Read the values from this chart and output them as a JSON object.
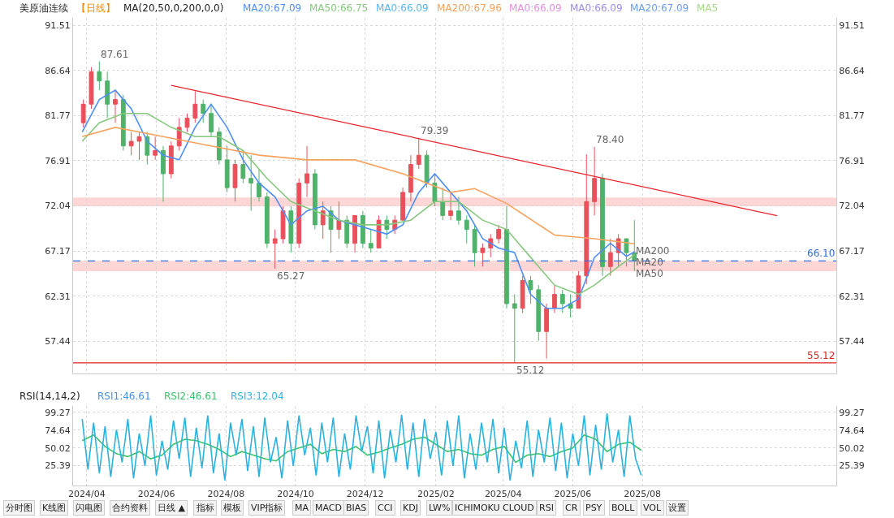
{
  "chart_data": [
    {
      "type": "candlestick",
      "title": "美原油连续",
      "subtitle": "【日线】",
      "legend_title": "MA(20,50,0,200,0,0)",
      "legend": "top",
      "grid": true,
      "tick_labels": "y",
      "xlim": [
        "2024-03-20",
        "2026-01-18"
      ],
      "xticks": [
        {
          "value": "2024-04-01",
          "label": null
        },
        {
          "value": "2024-06-01",
          "label": null
        },
        {
          "value": "2024-08-01",
          "label": null
        },
        {
          "value": "2024-10-01",
          "label": null
        },
        {
          "value": "2024-12-01",
          "label": null
        },
        {
          "value": "2025-02-01",
          "label": null
        },
        {
          "value": "2025-04-01",
          "label": null
        },
        {
          "value": "2025-06-01",
          "label": null
        },
        {
          "value": "2025-08-01",
          "label": null
        }
      ],
      "ylim": [
        54.0,
        92.3
      ],
      "yticks": [
        57.44,
        62.31,
        67.17,
        72.04,
        76.91,
        81.77,
        86.64,
        91.51
      ],
      "y2lim": [
        54.0,
        92.3
      ],
      "y2ticks": [
        57.44,
        62.31,
        67.17,
        72.04,
        76.91,
        81.77,
        86.64,
        91.51
      ],
      "series": [
        {
          "type": "candlestick",
          "color": "#e8515b",
          "x": [
            "2024-03-29",
            "2024-04-05",
            "2024-04-26",
            "2024-05-10",
            "2024-05-17",
            "2024-05-31",
            "2024-06-14",
            "2024-06-21",
            "2024-06-28",
            "2024-07-05",
            "2024-08-09",
            "2024-09-13",
            "2024-09-20",
            "2024-10-04",
            "2024-10-11",
            "2024-10-25",
            "2024-11-08",
            "2024-11-22",
            "2024-12-13",
            "2024-12-27",
            "2025-01-03",
            "2025-01-10",
            "2025-01-17",
            "2025-02-14",
            "2025-03-14",
            "2025-03-21",
            "2025-03-28",
            "2025-04-18",
            "2025-05-09",
            "2025-05-16",
            "2025-06-06",
            "2025-06-13",
            "2025-06-20",
            "2025-07-04",
            "2025-07-11"
          ],
          "ohlc": [
            [
              81,
              83.5,
              80.5,
              83
            ],
            [
              83,
              87,
              82.5,
              86.5
            ],
            [
              83,
              84.5,
              81,
              83.5
            ],
            [
              78.5,
              80,
              77.5,
              79
            ],
            [
              79,
              80,
              77,
              79.5
            ],
            [
              77.5,
              79.5,
              77,
              78
            ],
            [
              75.5,
              79,
              75,
              78.5
            ],
            [
              78.5,
              81.5,
              78,
              80.5
            ],
            [
              80.5,
              82,
              80,
              81.5
            ],
            [
              81.5,
              84.4,
              81,
              83
            ],
            [
              74,
              77,
              72.5,
              76.5
            ],
            [
              68,
              69.5,
              65.27,
              68.5
            ],
            [
              68.5,
              72,
              68,
              71.5
            ],
            [
              68,
              75,
              67.5,
              74.5
            ],
            [
              74.5,
              78.5,
              73,
              75.5
            ],
            [
              70,
              72.5,
              68.5,
              71.5
            ],
            [
              69.5,
              72.5,
              68.5,
              70.5
            ],
            [
              68,
              71,
              67,
              71
            ],
            [
              67.5,
              71,
              67.5,
              70.5
            ],
            [
              69.5,
              71,
              69,
              70.5
            ],
            [
              70.5,
              74,
              70.5,
              73.5
            ],
            [
              73.5,
              77.5,
              72.5,
              76.5
            ],
            [
              76.5,
              79.39,
              76,
              77.5
            ],
            [
              71,
              73.5,
              70.5,
              71.5
            ],
            [
              67,
              68,
              65.5,
              67.5
            ],
            [
              67.5,
              69,
              66.5,
              68.5
            ],
            [
              68.5,
              70,
              68,
              69.5
            ],
            [
              61,
              64.5,
              60.5,
              64
            ],
            [
              58.5,
              61.5,
              55.6,
              61
            ],
            [
              61,
              63.5,
              60.5,
              62.5
            ],
            [
              61,
              65,
              61,
              64.5
            ],
            [
              64.5,
              77.6,
              63.6,
              72.5
            ],
            [
              72.5,
              78.4,
              71,
              75
            ],
            [
              65.5,
              68.5,
              64.5,
              67
            ],
            [
              67,
              69,
              65.5,
              68.5
            ]
          ]
        },
        {
          "type": "candlestick",
          "color": "#4fb26a",
          "x": [
            "2024-04-12",
            "2024-04-19",
            "2024-05-03",
            "2024-05-24",
            "2024-06-07",
            "2024-07-12",
            "2024-07-19",
            "2024-07-26",
            "2024-08-02",
            "2024-08-16",
            "2024-08-23",
            "2024-08-30",
            "2024-09-06",
            "2024-09-27",
            "2024-10-18",
            "2024-11-01",
            "2024-11-15",
            "2024-11-29",
            "2024-12-06",
            "2024-12-20",
            "2025-01-24",
            "2025-01-31",
            "2025-02-07",
            "2025-02-21",
            "2025-02-28",
            "2025-03-07",
            "2025-04-04",
            "2025-04-11",
            "2025-04-25",
            "2025-05-02",
            "2025-05-23",
            "2025-05-30",
            "2025-06-27",
            "2025-07-18",
            "2025-07-25"
          ],
          "ohlc": [
            [
              86.5,
              87.61,
              84.5,
              85.5
            ],
            [
              85.5,
              86.5,
              81.5,
              83
            ],
            [
              83.5,
              84,
              78,
              78.5
            ],
            [
              79.5,
              80,
              76.5,
              77.5
            ],
            [
              78,
              78.5,
              72.5,
              75.5
            ],
            [
              83,
              83.5,
              81,
              82
            ],
            [
              82,
              83,
              79.5,
              80
            ],
            [
              80,
              80.5,
              76.5,
              77
            ],
            [
              77,
              78.5,
              73.5,
              74
            ],
            [
              76.5,
              78,
              74.5,
              75
            ],
            [
              75,
              77.5,
              71.5,
              74.5
            ],
            [
              74.5,
              76,
              72.5,
              73
            ],
            [
              73,
              73.5,
              67.5,
              68
            ],
            [
              71.5,
              72,
              67,
              68
            ],
            [
              75.5,
              76,
              69.5,
              70
            ],
            [
              71.5,
              72,
              67,
              69.5
            ],
            [
              70.5,
              71,
              67.5,
              68
            ],
            [
              71,
              71.5,
              67.5,
              68
            ],
            [
              68,
              69.5,
              67,
              67.5
            ],
            [
              70.5,
              71,
              68.5,
              69.5
            ],
            [
              77.5,
              78,
              74,
              74.5
            ],
            [
              74.5,
              75.5,
              72,
              72.5
            ],
            [
              72.5,
              74,
              70.5,
              71
            ],
            [
              71.5,
              73,
              70,
              70.5
            ],
            [
              70.5,
              71,
              68,
              69.5
            ],
            [
              69.5,
              70,
              65.5,
              67
            ],
            [
              69.5,
              72,
              61,
              61.5
            ],
            [
              61.5,
              62.5,
              55.12,
              61
            ],
            [
              64,
              64.5,
              61.5,
              63
            ],
            [
              63,
              63.5,
              57.5,
              58.5
            ],
            [
              62.5,
              63,
              60.5,
              61.5
            ],
            [
              61.5,
              62.5,
              60,
              61
            ],
            [
              75,
              75.5,
              64.5,
              65.5
            ],
            [
              68.5,
              68.5,
              65.5,
              67
            ],
            [
              67,
              70.5,
              65,
              66.1
            ]
          ]
        },
        {
          "type": "line",
          "name": "MA20:67.09",
          "color": "#4e8ef7",
          "x": [
            "2024-03-28",
            "2024-04-12",
            "2024-04-26",
            "2024-05-10",
            "2024-05-24",
            "2024-06-07",
            "2024-06-21",
            "2024-07-05",
            "2024-07-19",
            "2024-08-02",
            "2024-08-16",
            "2024-08-30",
            "2024-09-13",
            "2024-09-27",
            "2024-10-11",
            "2024-10-25",
            "2024-11-08",
            "2024-11-22",
            "2024-12-06",
            "2024-12-20",
            "2025-01-03",
            "2025-01-17",
            "2025-01-31",
            "2025-02-14",
            "2025-02-28",
            "2025-03-14",
            "2025-03-28",
            "2025-04-11",
            "2025-04-25",
            "2025-05-09",
            "2025-05-23",
            "2025-06-06",
            "2025-06-20",
            "2025-07-04",
            "2025-07-18",
            "2025-07-25"
          ],
          "values": [
            80.0,
            83.5,
            84.5,
            82.5,
            79,
            77.5,
            77.0,
            80.5,
            83.0,
            80.5,
            77,
            74.5,
            73,
            70.0,
            71.5,
            72.0,
            70.5,
            70.0,
            69.5,
            69.0,
            70.0,
            73.5,
            75.5,
            73.5,
            71.5,
            68.5,
            67.5,
            67.0,
            62.5,
            61.0,
            61.0,
            62.0,
            66.5,
            68.0,
            66.6,
            67.09
          ]
        },
        {
          "type": "line",
          "name": "MA50:66.75",
          "color": "#86c87e",
          "x": [
            "2024-03-28",
            "2024-04-12",
            "2024-05-03",
            "2024-05-24",
            "2024-06-14",
            "2024-07-05",
            "2024-07-26",
            "2024-08-16",
            "2024-09-06",
            "2024-09-27",
            "2024-10-18",
            "2024-11-08",
            "2024-11-29",
            "2024-12-20",
            "2025-01-10",
            "2025-01-31",
            "2025-02-21",
            "2025-03-14",
            "2025-04-04",
            "2025-04-25",
            "2025-05-16",
            "2025-06-06",
            "2025-06-20",
            "2025-07-11",
            "2025-07-25"
          ],
          "values": [
            79.0,
            81.0,
            82.0,
            82.0,
            80.5,
            79.5,
            79.5,
            78,
            75,
            72.5,
            71.5,
            70.5,
            70,
            70,
            70.5,
            72.5,
            72.5,
            70.5,
            69.5,
            66.5,
            63.5,
            62.5,
            63.5,
            65.5,
            66.75
          ]
        },
        {
          "type": "line",
          "name": "MA0:66.09",
          "color": "#55b7f0",
          "values": [
            null
          ]
        },
        {
          "type": "line",
          "name": "MA200:67.96",
          "color": "#f7a25e",
          "x": [
            "2024-03-28",
            "2024-04-26",
            "2024-06-07",
            "2024-07-19",
            "2024-08-30",
            "2024-10-11",
            "2024-11-22",
            "2025-01-03",
            "2025-02-14",
            "2025-03-07",
            "2025-04-04",
            "2025-05-16",
            "2025-06-20",
            "2025-07-25"
          ],
          "values": [
            79.5,
            80.5,
            79.5,
            78.5,
            77.5,
            77,
            77,
            75.5,
            73.5,
            73.9,
            72.3,
            68.9,
            68.5,
            67.96
          ]
        },
        {
          "type": "line",
          "name": "MA0:66.09",
          "color": "#e58ce0",
          "values": [
            null
          ]
        },
        {
          "type": "line",
          "name": "MA0:66.09",
          "color": "#9d8cf0",
          "values": [
            null
          ]
        },
        {
          "type": "line",
          "name": "MA20:67.09",
          "color": "#6a9cf0",
          "values": [
            null
          ]
        },
        {
          "type": "line",
          "name": "MA5",
          "color": "#a5d98a",
          "values": [
            null
          ]
        },
        {
          "type": "line",
          "color": "#e8202a",
          "x": [
            "2024-06-14",
            "2025-11-27"
          ],
          "values": [
            85.03,
            70.98
          ]
        }
      ],
      "ref_lines": [
        {
          "axis": "y",
          "value": 55.12,
          "label": "55.12",
          "color": "#e02020",
          "line_style": "solid"
        },
        {
          "axis": "y",
          "value": 66.1,
          "label": "66.10",
          "color": "#2f6fe0",
          "line_style": "dashed"
        }
      ],
      "bands": [
        {
          "axis": "y",
          "from": 71.99,
          "to": 72.94,
          "color": "#ffd6d6"
        },
        {
          "axis": "y",
          "from": 65.01,
          "to": 66.12,
          "color": "#ffd6d6"
        }
      ],
      "annotations": [
        "分时图",
        "K线图",
        "闪电图",
        "合约资料",
        "日线 ▲",
        "指标",
        "模板",
        "VIP指标",
        "MA",
        "MACD",
        "BIAS",
        "CCI",
        "KDJ",
        "LW%",
        "ICHIMOKU CLOUD",
        "RSI",
        "CR",
        "PSY",
        "BOLL",
        "VOL",
        "设置",
        {
          "text": "87.61",
          "x": "2024-04-12",
          "y": 87.61
        },
        {
          "text": "79.39",
          "x": "2025-01-17",
          "y": 79.39
        },
        {
          "text": "78.40",
          "x": "2025-06-20",
          "y": 78.4
        },
        {
          "text": "65.27",
          "x": "2024-09-13",
          "y": 65.27
        },
        {
          "text": "55.12",
          "x": "2025-04-11",
          "y": 55.12
        },
        {
          "text": "MA200",
          "x": "2025-07-25",
          "y": 67.96
        },
        {
          "text": "MA20",
          "x": "2025-07-25",
          "y": 67.09
        },
        {
          "text": "MA50",
          "x": "2025-07-25",
          "y": 66.75
        }
      ]
    },
    {
      "type": "line",
      "legend_title": "RSI(14,14,2)",
      "legend": "top left",
      "grid": true,
      "xlim": [
        "2024-03-20",
        "2026-01-18"
      ],
      "xticks": [
        {
          "value": "2024-04-01",
          "label": "2024/04"
        },
        {
          "value": "2024-06-01",
          "label": "2024/06"
        },
        {
          "value": "2024-08-01",
          "label": "2024/08"
        },
        {
          "value": "2024-10-01",
          "label": "2024/10"
        },
        {
          "value": "2024-12-01",
          "label": "2024/12"
        },
        {
          "value": "2025-02-01",
          "label": "2025/02"
        },
        {
          "value": "2025-04-01",
          "label": "2025/04"
        },
        {
          "value": "2025-06-01",
          "label": "2025/06"
        },
        {
          "value": "2025-08-01",
          "label": "2025/08"
        }
      ],
      "ylim": [
        -2,
        108
      ],
      "yticks": [
        25.39,
        50.02,
        74.64,
        99.27
      ],
      "y2lim": [
        -2,
        108
      ],
      "y2ticks": [
        25.39,
        50.02,
        74.64,
        99.27
      ],
      "series": [
        {
          "name": "RSI1:46.61",
          "color": "#4a90e2",
          "values": [
            null
          ]
        },
        {
          "name": "RSI2:46.61",
          "color": "#3dc46a",
          "x": [
            "2024-03-28",
            "2024-04-07",
            "2024-04-17",
            "2024-04-27",
            "2024-05-07",
            "2024-05-17",
            "2024-05-27",
            "2024-06-06",
            "2024-06-16",
            "2024-06-26",
            "2024-07-06",
            "2024-07-16",
            "2024-07-26",
            "2024-08-05",
            "2024-08-15",
            "2024-08-25",
            "2024-09-04",
            "2024-09-14",
            "2024-09-24",
            "2024-10-04",
            "2024-10-14",
            "2024-10-24",
            "2024-11-03",
            "2024-11-13",
            "2024-11-23",
            "2024-12-03",
            "2024-12-13",
            "2024-12-23",
            "2025-01-02",
            "2025-01-12",
            "2025-01-22",
            "2025-02-01",
            "2025-02-11",
            "2025-02-21",
            "2025-03-03",
            "2025-03-13",
            "2025-03-23",
            "2025-04-02",
            "2025-04-12",
            "2025-04-22",
            "2025-05-02",
            "2025-05-12",
            "2025-05-22",
            "2025-06-01",
            "2025-06-11",
            "2025-06-21",
            "2025-07-01",
            "2025-07-11",
            "2025-07-21",
            "2025-07-31"
          ],
          "values": [
            60,
            68,
            52,
            42,
            38,
            45,
            35,
            40,
            55,
            62,
            60,
            55,
            48,
            38,
            45,
            40,
            35,
            32,
            45,
            50,
            55,
            42,
            48,
            45,
            52,
            40,
            44,
            50,
            55,
            62,
            65,
            55,
            45,
            48,
            42,
            40,
            48,
            52,
            30,
            40,
            42,
            38,
            45,
            50,
            68,
            62,
            45,
            55,
            58,
            46.61
          ]
        },
        {
          "name": "RSI3:12.04",
          "color": "#2bb3e0",
          "x": [
            "2024-03-28",
            "2024-04-02",
            "2024-04-07",
            "2024-04-12",
            "2024-04-17",
            "2024-04-22",
            "2024-04-27",
            "2024-05-02",
            "2024-05-07",
            "2024-05-12",
            "2024-05-17",
            "2024-05-22",
            "2024-05-27",
            "2024-06-01",
            "2024-06-06",
            "2024-06-11",
            "2024-06-16",
            "2024-06-21",
            "2024-06-26",
            "2024-07-01",
            "2024-07-06",
            "2024-07-11",
            "2024-07-16",
            "2024-07-21",
            "2024-07-26",
            "2024-07-31",
            "2024-08-05",
            "2024-08-10",
            "2024-08-15",
            "2024-08-20",
            "2024-08-25",
            "2024-08-30",
            "2024-09-04",
            "2024-09-09",
            "2024-09-14",
            "2024-09-19",
            "2024-09-24",
            "2024-09-29",
            "2024-10-04",
            "2024-10-09",
            "2024-10-14",
            "2024-10-19",
            "2024-10-24",
            "2024-10-29",
            "2024-11-03",
            "2024-11-08",
            "2024-11-13",
            "2024-11-18",
            "2024-11-23",
            "2024-11-28",
            "2024-12-03",
            "2024-12-08",
            "2024-12-13",
            "2024-12-18",
            "2024-12-23",
            "2024-12-28",
            "2025-01-02",
            "2025-01-07",
            "2025-01-12",
            "2025-01-17",
            "2025-01-22",
            "2025-01-27",
            "2025-02-01",
            "2025-02-06",
            "2025-02-11",
            "2025-02-16",
            "2025-02-21",
            "2025-02-26",
            "2025-03-03",
            "2025-03-08",
            "2025-03-13",
            "2025-03-18",
            "2025-03-23",
            "2025-03-28",
            "2025-04-02",
            "2025-04-07",
            "2025-04-12",
            "2025-04-17",
            "2025-04-22",
            "2025-04-27",
            "2025-05-02",
            "2025-05-07",
            "2025-05-12",
            "2025-05-17",
            "2025-05-22",
            "2025-05-27",
            "2025-06-01",
            "2025-06-06",
            "2025-06-11",
            "2025-06-16",
            "2025-06-21",
            "2025-06-26",
            "2025-07-01",
            "2025-07-06",
            "2025-07-11",
            "2025-07-16",
            "2025-07-21",
            "2025-07-26",
            "2025-07-31"
          ],
          "values": [
            90,
            20,
            85,
            15,
            80,
            10,
            75,
            30,
            90,
            8,
            70,
            25,
            95,
            12,
            60,
            20,
            88,
            35,
            92,
            10,
            78,
            22,
            95,
            15,
            70,
            5,
            85,
            40,
            90,
            18,
            80,
            10,
            92,
            30,
            65,
            8,
            88,
            25,
            95,
            40,
            78,
            12,
            85,
            30,
            92,
            10,
            70,
            20,
            95,
            45,
            80,
            15,
            88,
            8,
            75,
            30,
            96,
            20,
            85,
            10,
            90,
            35,
            72,
            12,
            88,
            25,
            95,
            8,
            70,
            20,
            85,
            30,
            90,
            15,
            78,
            5,
            60,
            22,
            88,
            10,
            75,
            30,
            92,
            18,
            85,
            8,
            70,
            25,
            95,
            12,
            82,
            20,
            98,
            30,
            75,
            10,
            95,
            35,
            12.04
          ]
        }
      ]
    }
  ]
}
